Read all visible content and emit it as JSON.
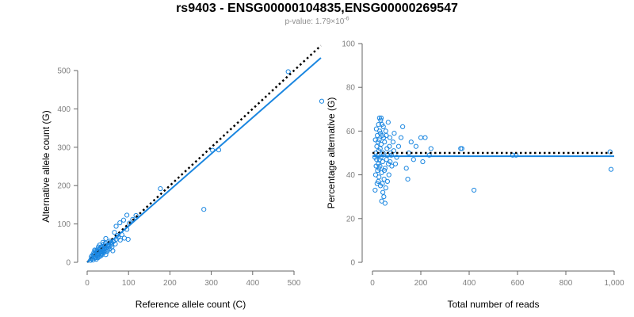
{
  "header": {
    "title": "rs9403 - ENSG00000104835,ENSG00000269547",
    "pvalue_prefix": "p-value: 1.79×10",
    "pvalue_exponent": "-6"
  },
  "colors": {
    "points": "#1a86e0",
    "fit_line": "#1a86e0",
    "reference_line": "#000000",
    "axis": "#666666",
    "tick_text": "#7f7f7f",
    "label_text": "#000000"
  },
  "chart_data": [
    {
      "type": "scatter",
      "title": "",
      "xlabel": "Reference allele count (C)",
      "ylabel": "Alternative allele count (G)",
      "xlim": [
        0,
        570
      ],
      "ylim": [
        0,
        540
      ],
      "xticks": [
        0,
        100,
        200,
        300,
        400,
        500
      ],
      "yticks": [
        0,
        100,
        200,
        300,
        400,
        500
      ],
      "xtick_labels": [
        "0",
        "100",
        "200",
        "300",
        "400",
        "500"
      ],
      "ytick_labels": [
        "0",
        "100",
        "200",
        "300",
        "400",
        "500"
      ],
      "grid": false,
      "reference_line": {
        "style": "dotted",
        "slope": 1,
        "intercept": 0,
        "x": [
          0,
          565
        ]
      },
      "fit_line": {
        "style": "solid",
        "x": [
          0,
          565
        ],
        "y": [
          0,
          533
        ]
      },
      "points": [
        [
          486,
          497
        ],
        [
          567,
          420
        ],
        [
          282,
          138
        ],
        [
          303,
          292
        ],
        [
          318,
          293
        ],
        [
          177,
          192
        ],
        [
          118,
          122
        ],
        [
          96,
          123
        ],
        [
          110,
          112
        ],
        [
          88,
          110
        ],
        [
          102,
          102
        ],
        [
          79,
          103
        ],
        [
          96,
          86
        ],
        [
          70,
          94
        ],
        [
          84,
          72
        ],
        [
          66,
          78
        ],
        [
          90,
          63
        ],
        [
          99,
          60
        ],
        [
          45,
          62
        ],
        [
          55,
          55
        ],
        [
          60,
          50
        ],
        [
          40,
          47
        ],
        [
          50,
          45
        ],
        [
          35,
          41
        ],
        [
          48,
          38
        ],
        [
          42,
          35
        ],
        [
          30,
          33
        ],
        [
          38,
          30
        ],
        [
          25,
          28
        ],
        [
          33,
          26
        ],
        [
          20,
          24
        ],
        [
          28,
          22
        ],
        [
          45,
          30
        ],
        [
          60,
          40
        ],
        [
          70,
          60
        ],
        [
          52,
          48
        ],
        [
          36,
          20
        ],
        [
          22,
          18
        ],
        [
          18,
          15
        ],
        [
          26,
          12
        ],
        [
          15,
          20
        ],
        [
          30,
          15
        ],
        [
          40,
          25
        ],
        [
          12,
          10
        ],
        [
          24,
          30
        ],
        [
          32,
          38
        ],
        [
          44,
          50
        ],
        [
          58,
          45
        ],
        [
          64,
          55
        ],
        [
          75,
          65
        ],
        [
          20,
          30
        ],
        [
          28,
          35
        ],
        [
          35,
          28
        ],
        [
          42,
          42
        ],
        [
          16,
          25
        ],
        [
          22,
          8
        ],
        [
          10,
          14
        ],
        [
          14,
          6
        ],
        [
          18,
          32
        ],
        [
          27,
          40
        ],
        [
          50,
          32
        ],
        [
          38,
          52
        ],
        [
          55,
          35
        ],
        [
          62,
          30
        ],
        [
          8,
          5
        ],
        [
          12,
          18
        ],
        [
          30,
          45
        ],
        [
          45,
          20
        ],
        [
          25,
          16
        ],
        [
          34,
          22
        ],
        [
          40,
          32
        ],
        [
          48,
          28
        ],
        [
          19,
          11
        ],
        [
          23,
          26
        ],
        [
          29,
          19
        ],
        [
          31,
          29
        ],
        [
          37,
          34
        ],
        [
          43,
          38
        ],
        [
          53,
          42
        ],
        [
          57,
          52
        ],
        [
          68,
          48
        ],
        [
          72,
          70
        ],
        [
          80,
          58
        ],
        [
          11,
          9
        ],
        [
          17,
          21
        ],
        [
          21,
          13
        ],
        [
          26,
          23
        ],
        [
          33,
          17
        ],
        [
          39,
          27
        ],
        [
          46,
          36
        ]
      ]
    },
    {
      "type": "scatter",
      "title": "",
      "xlabel": "Total number of reads",
      "ylabel": "Percentage alternative (G)",
      "xlim": [
        0,
        1000
      ],
      "ylim": [
        0,
        100
      ],
      "xticks": [
        0,
        200,
        400,
        600,
        800,
        1000
      ],
      "yticks": [
        0,
        20,
        40,
        60,
        80,
        100
      ],
      "xtick_labels": [
        "0",
        "200",
        "400",
        "600",
        "800",
        "1,000"
      ],
      "ytick_labels": [
        "0",
        "20",
        "40",
        "60",
        "80",
        "100"
      ],
      "grid": false,
      "reference_line": {
        "style": "dotted",
        "y": 50
      },
      "fit_line": {
        "style": "solid",
        "y": 48.5
      },
      "points": [
        [
          983,
          50.5
        ],
        [
          987,
          42.5
        ],
        [
          594,
          49
        ],
        [
          580,
          49
        ],
        [
          420,
          33
        ],
        [
          365,
          52
        ],
        [
          370,
          52
        ],
        [
          242,
          52
        ],
        [
          218,
          57
        ],
        [
          200,
          57
        ],
        [
          235,
          49
        ],
        [
          208,
          46
        ],
        [
          180,
          53
        ],
        [
          160,
          55
        ],
        [
          150,
          50
        ],
        [
          170,
          47
        ],
        [
          140,
          43
        ],
        [
          146,
          38
        ],
        [
          125,
          62
        ],
        [
          118,
          57
        ],
        [
          108,
          53
        ],
        [
          100,
          48
        ],
        [
          95,
          45
        ],
        [
          90,
          59
        ],
        [
          85,
          55
        ],
        [
          80,
          44
        ],
        [
          75,
          50
        ],
        [
          72,
          57
        ],
        [
          68,
          40
        ],
        [
          65,
          64
        ],
        [
          60,
          52
        ],
        [
          58,
          47
        ],
        [
          55,
          60
        ],
        [
          52,
          43
        ],
        [
          50,
          55
        ],
        [
          48,
          38
        ],
        [
          45,
          62
        ],
        [
          44,
          50
        ],
        [
          42,
          46
        ],
        [
          40,
          58
        ],
        [
          38,
          41
        ],
        [
          36,
          54
        ],
        [
          35,
          48
        ],
        [
          34,
          65
        ],
        [
          33,
          35
        ],
        [
          32,
          52
        ],
        [
          31,
          44
        ],
        [
          30,
          60
        ],
        [
          29,
          47
        ],
        [
          28,
          56
        ],
        [
          27,
          39
        ],
        [
          26,
          51
        ],
        [
          25,
          63
        ],
        [
          24,
          45
        ],
        [
          23,
          55
        ],
        [
          22,
          49
        ],
        [
          21,
          42
        ],
        [
          20,
          58
        ],
        [
          19,
          36
        ],
        [
          18,
          53
        ],
        [
          17,
          47
        ],
        [
          16,
          61
        ],
        [
          15,
          44
        ],
        [
          14,
          50
        ],
        [
          13,
          40
        ],
        [
          12,
          56
        ],
        [
          11,
          33
        ],
        [
          10,
          48
        ],
        [
          47,
          30
        ],
        [
          52,
          27
        ],
        [
          38,
          28
        ],
        [
          62,
          37
        ],
        [
          55,
          34
        ],
        [
          43,
          32
        ],
        [
          66,
          45
        ],
        [
          70,
          53
        ],
        [
          78,
          49
        ],
        [
          88,
          51
        ],
        [
          46,
          57
        ],
        [
          39,
          63
        ],
        [
          33,
          59
        ],
        [
          27,
          43
        ],
        [
          24,
          37
        ],
        [
          29,
          66
        ],
        [
          36,
          66
        ],
        [
          41,
          36
        ],
        [
          49,
          42
        ],
        [
          57,
          58
        ],
        [
          63,
          49
        ],
        [
          73,
          46
        ]
      ]
    }
  ]
}
